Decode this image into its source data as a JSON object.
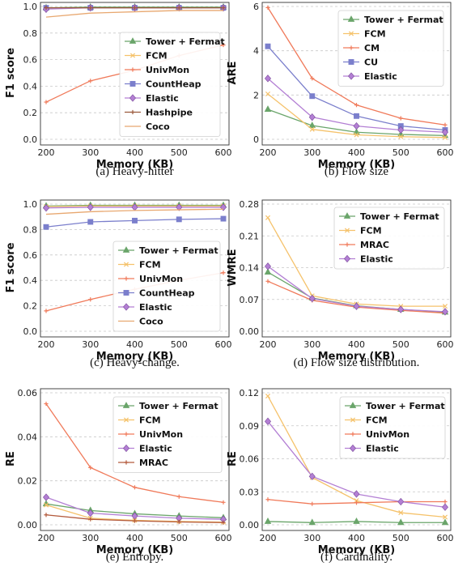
{
  "chart_data": [
    {
      "type": "line",
      "caption": "(a) Heavy-hitter",
      "xlabel": "Memory (KB)",
      "ylabel": "F1 score",
      "x": [
        200,
        300,
        400,
        500,
        600
      ],
      "xlim": [
        200,
        600
      ],
      "ylim": [
        0,
        1.0
      ],
      "yticks": [
        "0.0",
        "0.2",
        "0.4",
        "0.6",
        "0.8",
        "1.0"
      ],
      "xticks": [
        "200",
        "300",
        "400",
        "500",
        "600"
      ],
      "grid": "horizontal dashed",
      "legend_position": "center-right",
      "series": [
        {
          "name": "Tower + Fermat",
          "color": "#6aa56a",
          "marker": "triangle",
          "values": [
            0.99,
            0.995,
            0.995,
            0.995,
            0.995
          ]
        },
        {
          "name": "FCM",
          "color": "#f5c26b",
          "marker": "x",
          "values": [
            0.99,
            0.99,
            0.99,
            0.99,
            0.99
          ]
        },
        {
          "name": "UnivMon",
          "color": "#f07a5a",
          "marker": "plus",
          "values": [
            0.28,
            0.44,
            0.52,
            0.63,
            0.71
          ]
        },
        {
          "name": "CountHeap",
          "color": "#7b7fcc",
          "marker": "square",
          "values": [
            0.99,
            0.99,
            0.99,
            0.99,
            0.99
          ]
        },
        {
          "name": "Elastic",
          "color": "#b37fd4",
          "marker": "diamond",
          "values": [
            0.98,
            0.99,
            0.99,
            0.99,
            0.99
          ]
        },
        {
          "name": "Hashpipe",
          "color": "#9b5a3c",
          "marker": "plus",
          "values": [
            0.99,
            0.99,
            0.99,
            0.99,
            0.99
          ]
        },
        {
          "name": "Coco",
          "color": "#e8a870",
          "marker": "none",
          "values": [
            0.92,
            0.95,
            0.96,
            0.97,
            0.97
          ]
        }
      ]
    },
    {
      "type": "line",
      "caption": "(b) Flow size",
      "xlabel": "Memory (KB)",
      "ylabel": "ARE",
      "x": [
        200,
        300,
        400,
        500,
        600
      ],
      "xlim": [
        200,
        600
      ],
      "ylim": [
        0,
        6
      ],
      "yticks": [
        "0",
        "2",
        "4",
        "6"
      ],
      "xticks": [
        "200",
        "300",
        "400",
        "500",
        "600"
      ],
      "grid": "horizontal dashed",
      "legend_position": "top-right",
      "series": [
        {
          "name": "Tower + Fermat",
          "color": "#6aa56a",
          "marker": "triangle",
          "values": [
            1.35,
            0.62,
            0.32,
            0.22,
            0.17
          ]
        },
        {
          "name": "FCM",
          "color": "#f5c26b",
          "marker": "x",
          "values": [
            2.05,
            0.45,
            0.2,
            0.12,
            0.08
          ]
        },
        {
          "name": "CM",
          "color": "#f07a5a",
          "marker": "plus",
          "values": [
            5.95,
            2.75,
            1.55,
            0.95,
            0.65
          ]
        },
        {
          "name": "CU",
          "color": "#7b7fcc",
          "marker": "square",
          "values": [
            4.2,
            1.95,
            1.05,
            0.6,
            0.42
          ]
        },
        {
          "name": "Elastic",
          "color": "#b37fd4",
          "marker": "diamond",
          "values": [
            2.75,
            1.0,
            0.6,
            0.42,
            0.32
          ]
        }
      ]
    },
    {
      "type": "line",
      "caption": "(c) Heavy-change.",
      "xlabel": "Memory (KB)",
      "ylabel": "F1 score",
      "x": [
        200,
        300,
        400,
        500,
        600
      ],
      "xlim": [
        200,
        600
      ],
      "ylim": [
        0,
        1.0
      ],
      "yticks": [
        "0.0",
        "0.2",
        "0.4",
        "0.6",
        "0.8",
        "1.0"
      ],
      "xticks": [
        "200",
        "300",
        "400",
        "500",
        "600"
      ],
      "grid": "horizontal dashed",
      "legend_position": "lower-right",
      "series": [
        {
          "name": "Tower + Fermat",
          "color": "#6aa56a",
          "marker": "triangle",
          "values": [
            0.985,
            0.99,
            0.99,
            0.99,
            0.99
          ]
        },
        {
          "name": "FCM",
          "color": "#f5c26b",
          "marker": "x",
          "values": [
            0.98,
            0.985,
            0.985,
            0.985,
            0.985
          ]
        },
        {
          "name": "UnivMon",
          "color": "#f07a5a",
          "marker": "plus",
          "values": [
            0.16,
            0.25,
            0.33,
            0.4,
            0.46
          ]
        },
        {
          "name": "CountHeap",
          "color": "#7b7fcc",
          "marker": "square",
          "values": [
            0.82,
            0.86,
            0.87,
            0.88,
            0.885
          ]
        },
        {
          "name": "Elastic",
          "color": "#b37fd4",
          "marker": "diamond",
          "values": [
            0.97,
            0.975,
            0.975,
            0.975,
            0.975
          ]
        },
        {
          "name": "Coco",
          "color": "#e8a870",
          "marker": "none",
          "values": [
            0.92,
            0.94,
            0.95,
            0.955,
            0.96
          ]
        }
      ]
    },
    {
      "type": "line",
      "caption": "(d) Flow size distribution.",
      "xlabel": "Memory (KB)",
      "ylabel": "WMRE",
      "x": [
        200,
        300,
        400,
        500,
        600
      ],
      "xlim": [
        200,
        600
      ],
      "ylim": [
        0,
        0.28
      ],
      "yticks": [
        "0.00",
        "0.07",
        "0.14",
        "0.21",
        "0.28"
      ],
      "xticks": [
        "200",
        "300",
        "400",
        "500",
        "600"
      ],
      "grid": "horizontal dashed",
      "legend_position": "top-right",
      "series": [
        {
          "name": "Tower + Fermat",
          "color": "#6aa56a",
          "marker": "triangle",
          "values": [
            0.13,
            0.073,
            0.056,
            0.048,
            0.042
          ]
        },
        {
          "name": "FCM",
          "color": "#f5c26b",
          "marker": "x",
          "values": [
            0.25,
            0.078,
            0.06,
            0.055,
            0.055
          ]
        },
        {
          "name": "MRAC",
          "color": "#f07a5a",
          "marker": "plus",
          "values": [
            0.11,
            0.068,
            0.053,
            0.046,
            0.04
          ]
        },
        {
          "name": "Elastic",
          "color": "#b37fd4",
          "marker": "diamond",
          "values": [
            0.143,
            0.072,
            0.055,
            0.048,
            0.043
          ]
        }
      ]
    },
    {
      "type": "line",
      "caption": "(e) Entropy.",
      "xlabel": "Memory (KB)",
      "ylabel": "RE",
      "x": [
        200,
        300,
        400,
        500,
        600
      ],
      "xlim": [
        200,
        600
      ],
      "ylim": [
        0,
        0.06
      ],
      "yticks": [
        "0.00",
        "0.02",
        "0.04",
        "0.06"
      ],
      "xticks": [
        "200",
        "300",
        "400",
        "500",
        "600"
      ],
      "grid": "horizontal dashed",
      "legend_position": "top-right",
      "series": [
        {
          "name": "Tower + Fermat",
          "color": "#6aa56a",
          "marker": "triangle",
          "values": [
            0.0095,
            0.0065,
            0.005,
            0.004,
            0.0032
          ]
        },
        {
          "name": "FCM",
          "color": "#f5c26b",
          "marker": "x",
          "values": [
            0.009,
            0.003,
            0.002,
            0.0015,
            0.0012
          ]
        },
        {
          "name": "UnivMon",
          "color": "#f07a5a",
          "marker": "plus",
          "values": [
            0.055,
            0.026,
            0.017,
            0.0128,
            0.0102
          ]
        },
        {
          "name": "Elastic",
          "color": "#b37fd4",
          "marker": "diamond",
          "values": [
            0.0125,
            0.0053,
            0.004,
            0.003,
            0.0025
          ]
        },
        {
          "name": "MRAC",
          "color": "#b35a3c",
          "marker": "plus",
          "values": [
            0.0045,
            0.0025,
            0.0018,
            0.0013,
            0.001
          ]
        }
      ]
    },
    {
      "type": "line",
      "caption": "(f) Cardinality.",
      "xlabel": "Memory (KB)",
      "ylabel": "RE",
      "x": [
        200,
        300,
        400,
        500,
        600
      ],
      "xlim": [
        200,
        600
      ],
      "ylim": [
        0,
        0.12
      ],
      "yticks": [
        "0.00",
        "0.03",
        "0.06",
        "0.09",
        "0.12"
      ],
      "xticks": [
        "200",
        "300",
        "400",
        "500",
        "600"
      ],
      "grid": "horizontal dashed",
      "legend_position": "top-right",
      "series": [
        {
          "name": "Tower + Fermat",
          "color": "#6aa56a",
          "marker": "triangle",
          "values": [
            0.003,
            0.002,
            0.003,
            0.002,
            0.002
          ]
        },
        {
          "name": "FCM",
          "color": "#f5c26b",
          "marker": "x",
          "values": [
            0.117,
            0.043,
            0.022,
            0.011,
            0.007
          ]
        },
        {
          "name": "UnivMon",
          "color": "#f07a5a",
          "marker": "plus",
          "values": [
            0.023,
            0.019,
            0.02,
            0.021,
            0.021
          ]
        },
        {
          "name": "Elastic",
          "color": "#b37fd4",
          "marker": "diamond",
          "values": [
            0.094,
            0.044,
            0.028,
            0.021,
            0.016
          ]
        }
      ]
    }
  ]
}
